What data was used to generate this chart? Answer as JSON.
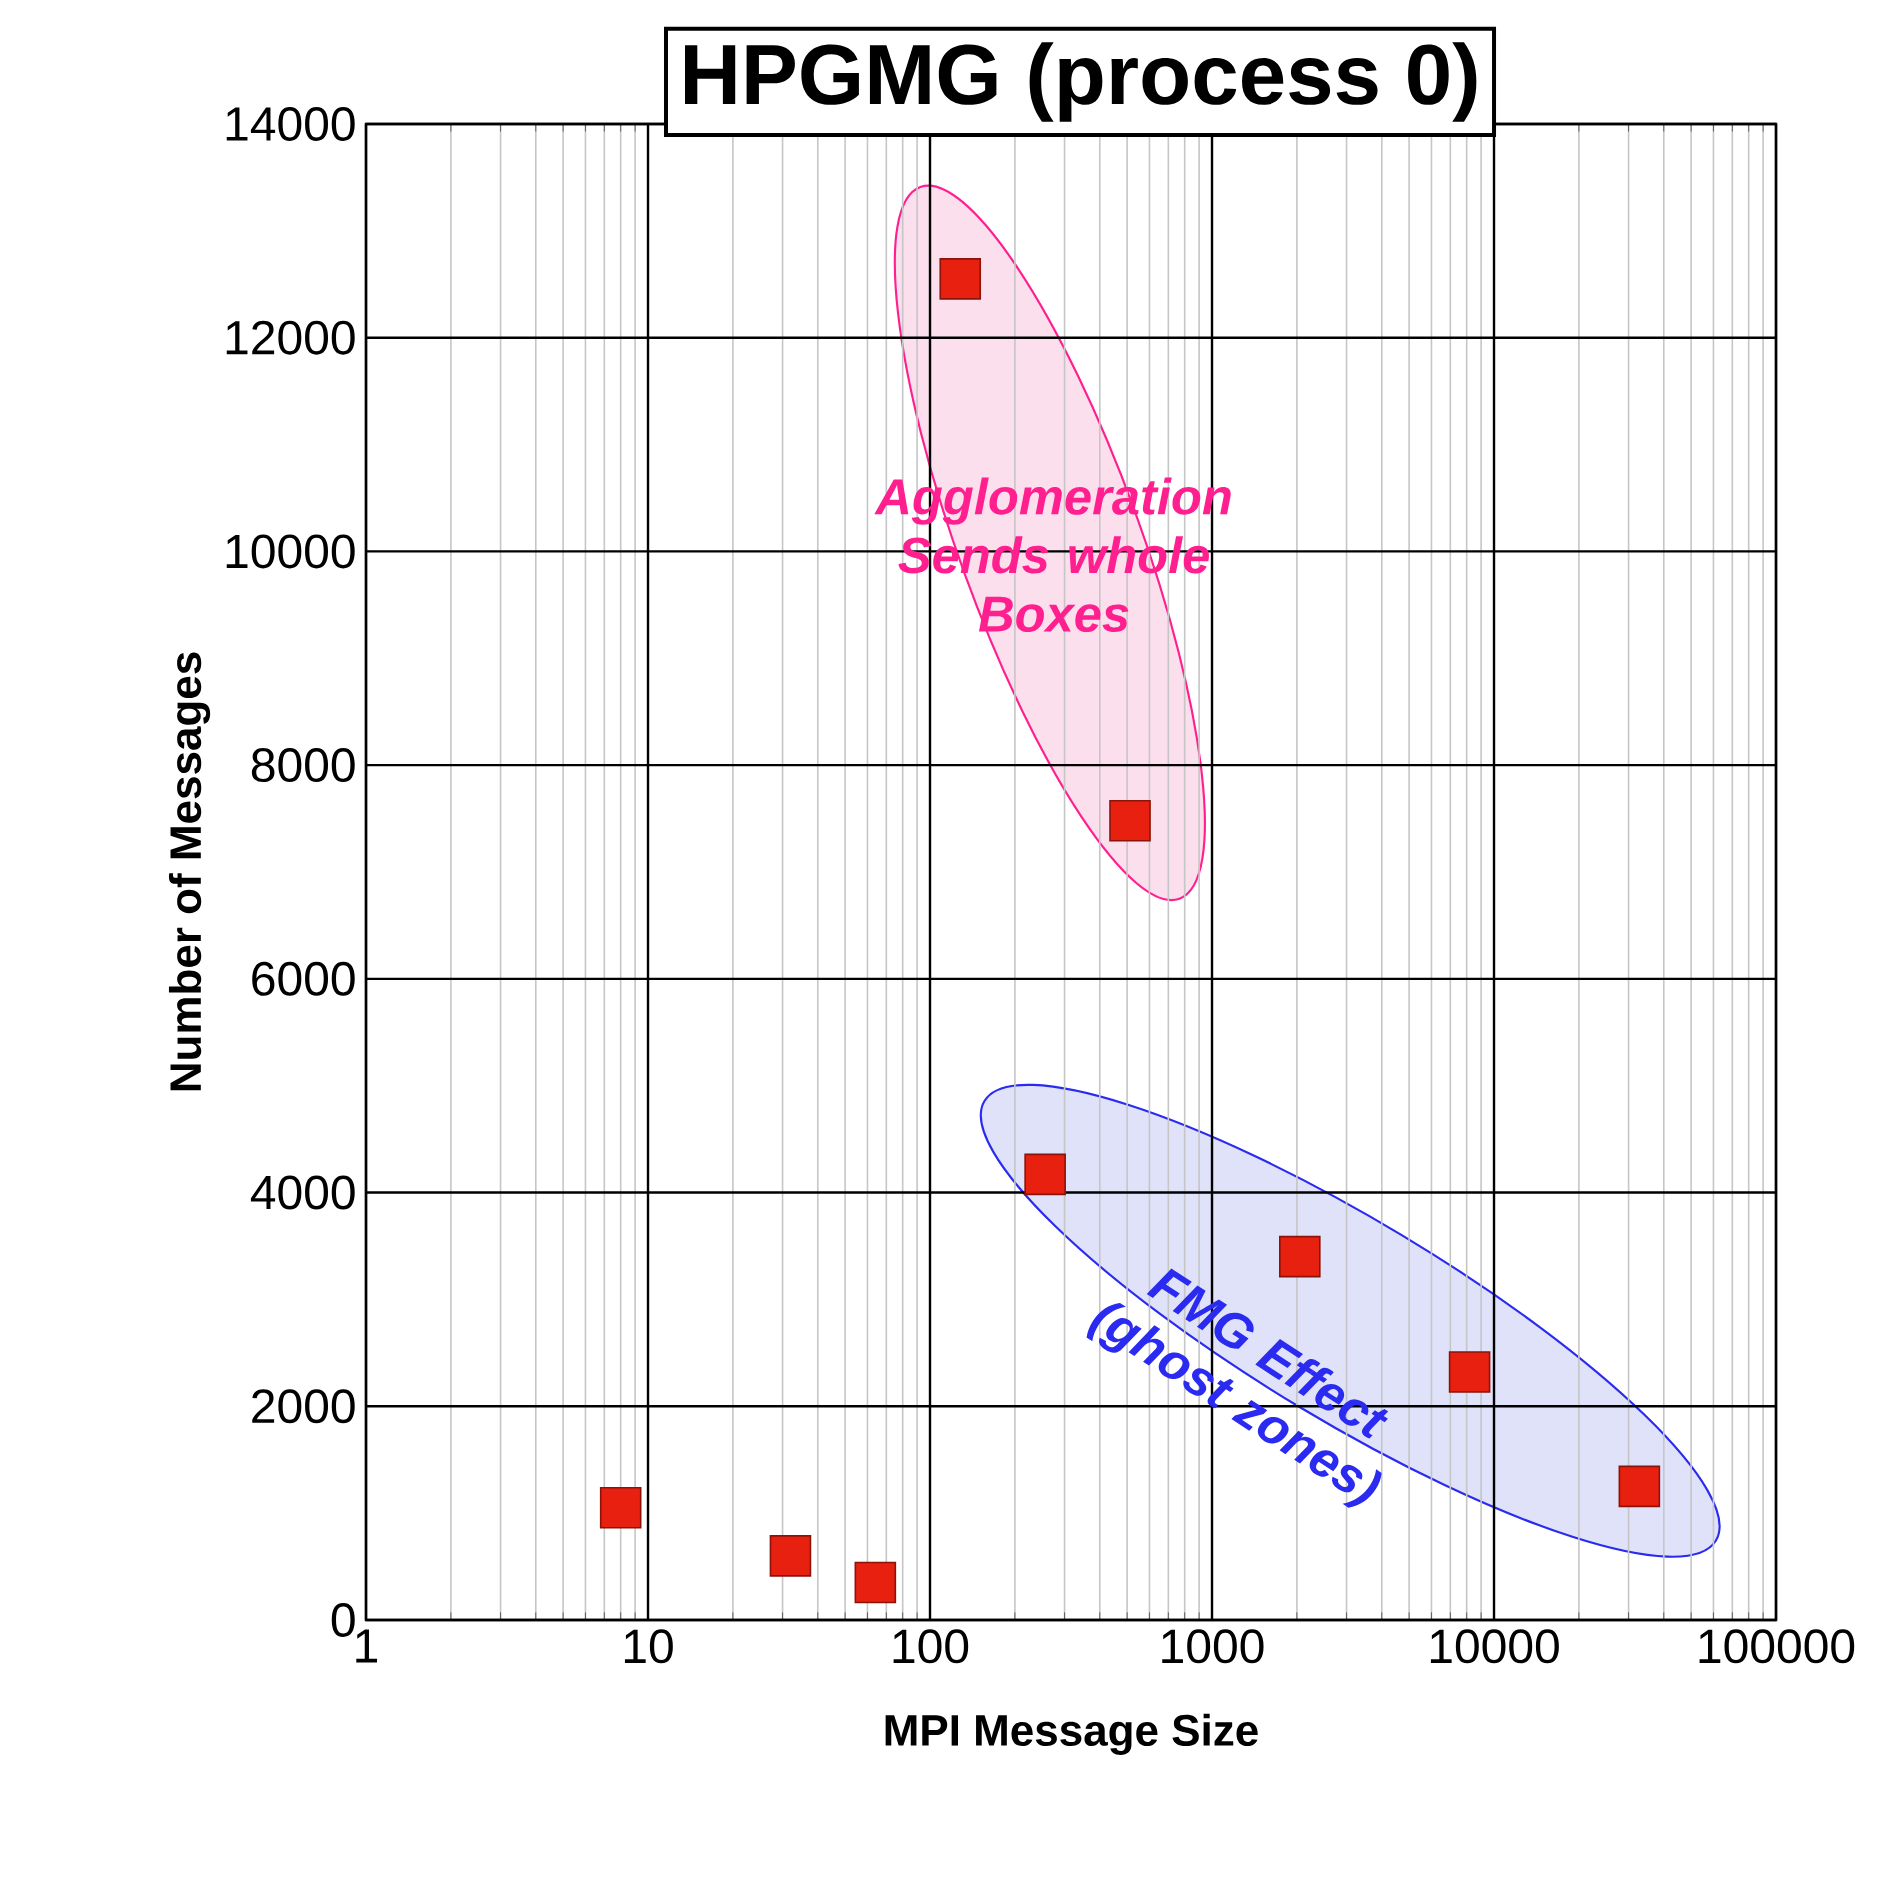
{
  "chart_data": {
    "type": "scatter",
    "title": "HPGMG (process 0)",
    "xlabel": "MPI Message Size",
    "ylabel": "Number of Messages",
    "x": [
      8,
      32,
      64,
      128,
      256,
      512,
      2048,
      8192,
      32768
    ],
    "series": [
      {
        "color": "#e8200f",
        "values": [
          1050,
          600,
          350,
          12550,
          4170,
          7480,
          3400,
          2320,
          1250
        ]
      }
    ],
    "log": "x",
    "grid": true,
    "marker": "square",
    "xlim": [
      1,
      100000
    ],
    "xticks": [
      1,
      10,
      100,
      1000,
      10000,
      100000
    ],
    "ylim": [
      0,
      14000
    ],
    "yticks": [
      0,
      2000,
      4000,
      6000,
      8000,
      10000,
      12000,
      14000
    ],
    "annotations": [
      "Agglomeration Sends whole Boxes",
      "FMG Effect (ghost zones)"
    ]
  }
}
